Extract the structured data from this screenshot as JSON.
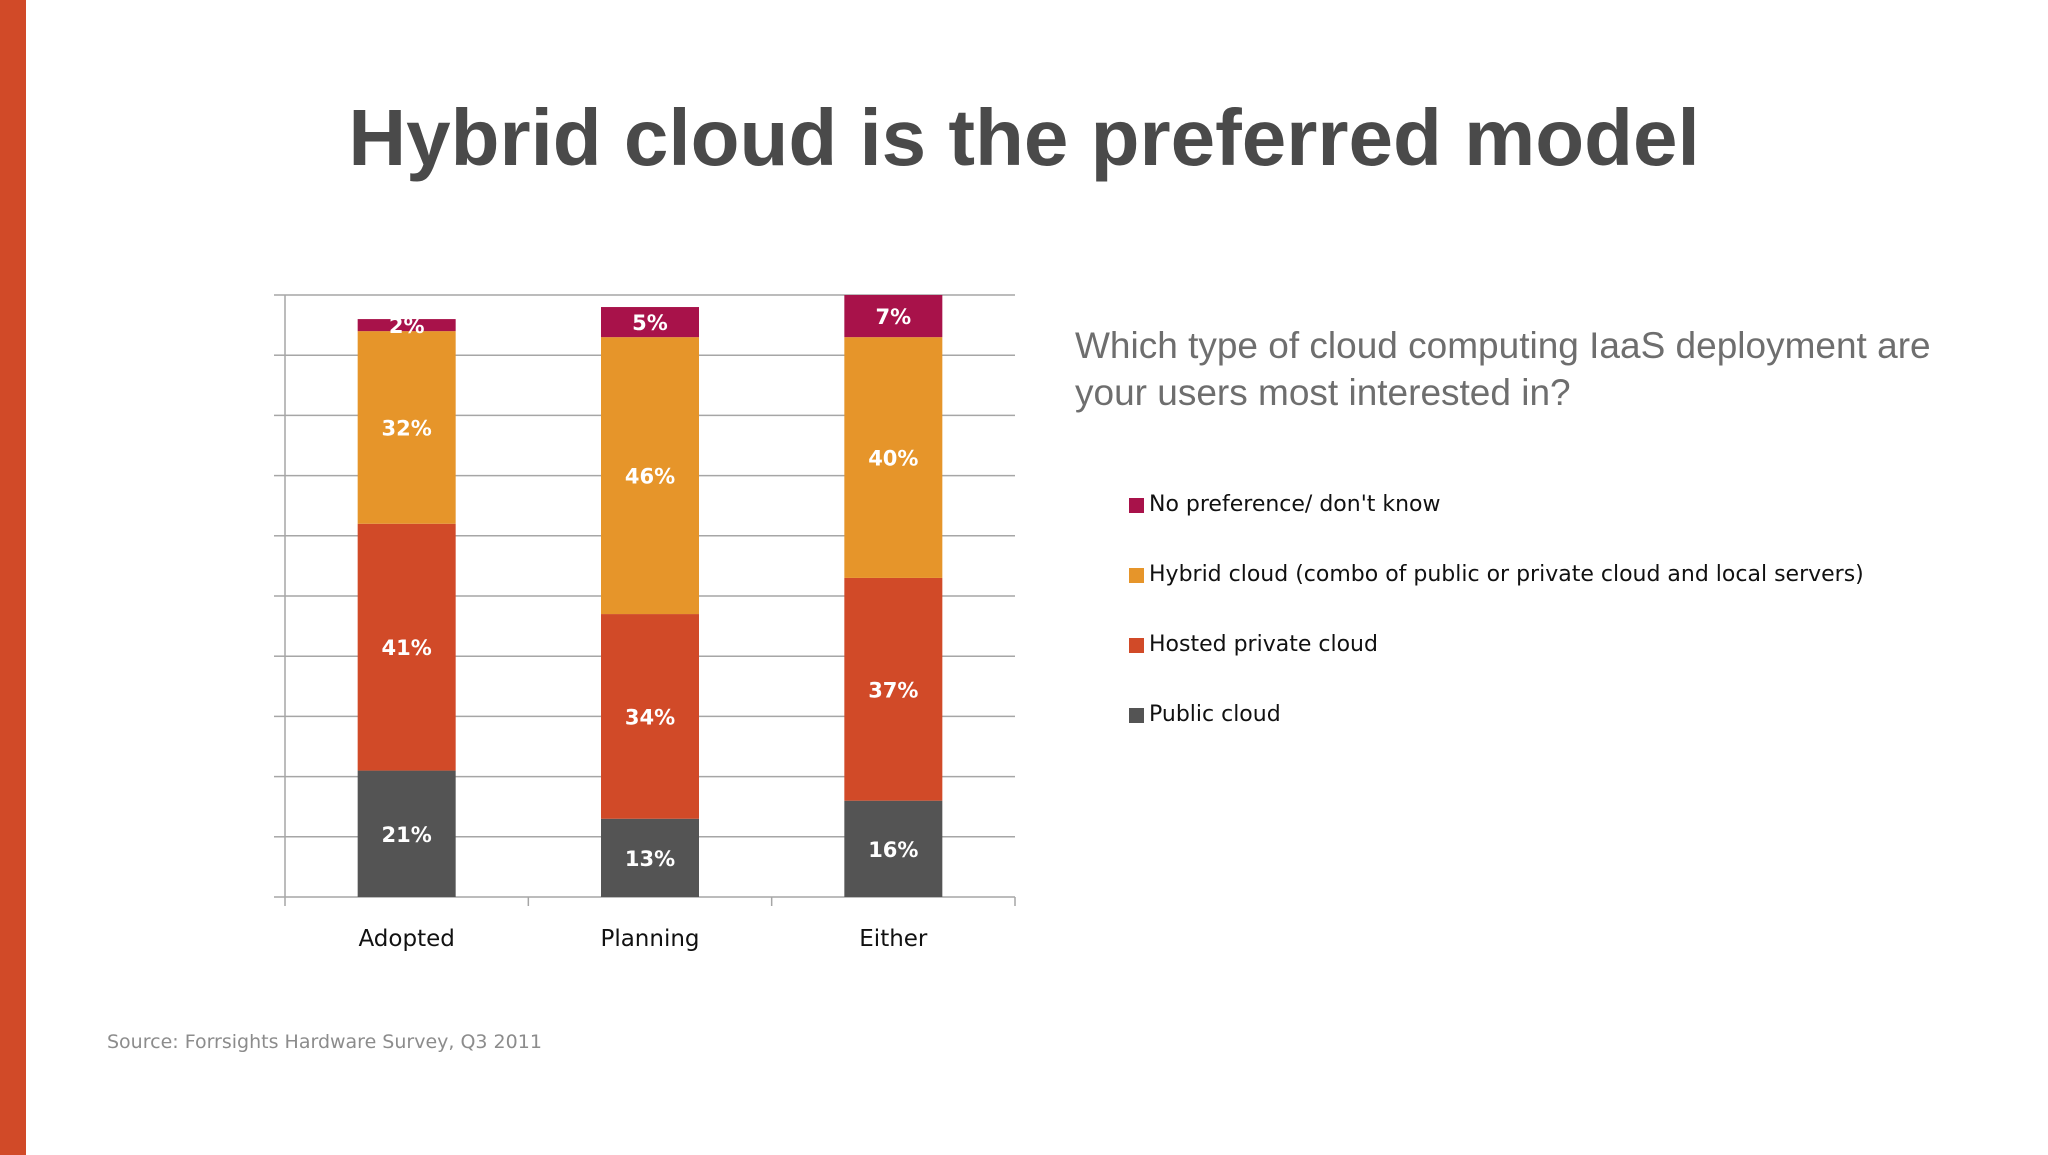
{
  "title": "Hybrid cloud is the preferred model",
  "question": "Which type of cloud computing IaaS deployment are your users most interested in?",
  "source": "Source: Forrsights Hardware Survey, Q3 2011",
  "colors": {
    "accent_bar": "#d14a28",
    "no_preference": "#a8124a",
    "hybrid": "#e6952a",
    "hosted_private": "#d14a28",
    "public": "#545454",
    "gridline": "#a6a6a6"
  },
  "chart_data": {
    "type": "bar",
    "stacked": true,
    "categories": [
      "Adopted",
      "Planning",
      "Either"
    ],
    "ylim": [
      0,
      100
    ],
    "grid": true,
    "legend_position": "right",
    "series": [
      {
        "name": "Public cloud",
        "values": [
          21,
          13,
          16
        ],
        "labels": [
          "21%",
          "13%",
          "16%"
        ],
        "color": "#545454"
      },
      {
        "name": "Hosted private cloud",
        "values": [
          41,
          34,
          37
        ],
        "labels": [
          "41%",
          "34%",
          "37%"
        ],
        "color": "#d14a28"
      },
      {
        "name": "Hybrid cloud (combo of public or private cloud and local servers)",
        "values": [
          32,
          46,
          40
        ],
        "labels": [
          "32%",
          "46%",
          "40%"
        ],
        "color": "#e6952a"
      },
      {
        "name": "No preference/ don't know",
        "values": [
          2,
          5,
          7
        ],
        "labels": [
          "2%",
          "5%",
          "7%"
        ],
        "color": "#a8124a"
      }
    ],
    "legend_order": [
      "No preference/ don't know",
      "Hybrid cloud (combo of public or private cloud and local servers)",
      "Hosted private cloud",
      "Public cloud"
    ]
  }
}
